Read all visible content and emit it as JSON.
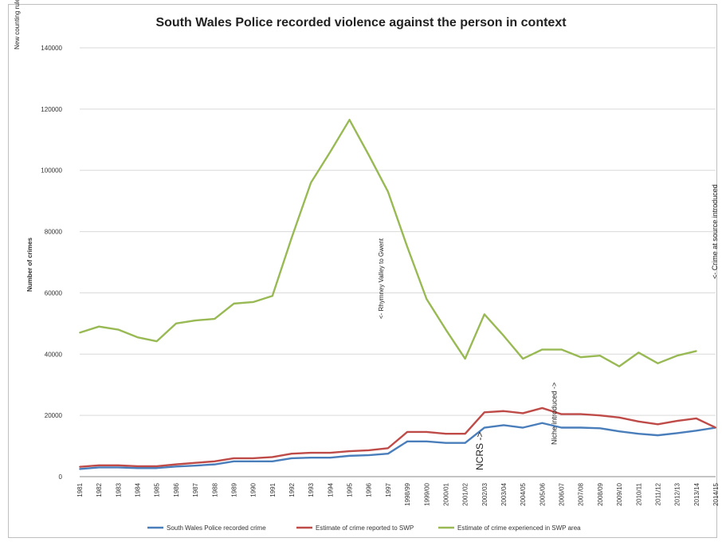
{
  "chart_data": {
    "type": "line",
    "title": "South Wales Police recorded violence against the person in context",
    "ylabel": "Number of crimes",
    "xlabel": "",
    "ylim": [
      0,
      140000
    ],
    "yticks": [
      0,
      20000,
      40000,
      60000,
      80000,
      100000,
      120000,
      140000
    ],
    "grid": true,
    "legend_position": "bottom",
    "categories": [
      "1981",
      "1982",
      "1983",
      "1984",
      "1985",
      "1986",
      "1987",
      "1988",
      "1989",
      "1990",
      "1991",
      "1992",
      "1993",
      "1994",
      "1995",
      "1996",
      "1997",
      "1998/99",
      "1999/00",
      "2000/01",
      "2001/02",
      "2002/03",
      "2003/04",
      "2004/05",
      "2005/06",
      "2006/07",
      "2007/08",
      "2008/09",
      "2009/10",
      "2010/11",
      "2011/12",
      "2012/13",
      "2013/14",
      "2014/15"
    ],
    "series": [
      {
        "name": "South Wales Police recorded crime",
        "color": "#4a7ebb",
        "values": [
          2500,
          3000,
          3000,
          2800,
          2800,
          3300,
          3600,
          4000,
          5000,
          5000,
          5000,
          6000,
          6200,
          6200,
          6800,
          7000,
          7500,
          11500,
          11500,
          11000,
          11000,
          16000,
          16800,
          16000,
          17500,
          16000,
          16000,
          15800,
          14800,
          14000,
          13500,
          14200,
          15000,
          16000
        ]
      },
      {
        "name": "Estimate of crime reported to SWP",
        "color": "#be4b48",
        "values": [
          3200,
          3700,
          3700,
          3400,
          3400,
          4000,
          4500,
          5000,
          6000,
          6000,
          6400,
          7500,
          7800,
          7800,
          8300,
          8600,
          9300,
          14600,
          14600,
          14000,
          14000,
          21000,
          21400,
          20700,
          22400,
          20400,
          20400,
          20000,
          19300,
          18000,
          17100,
          18200,
          19000,
          16000
        ]
      },
      {
        "name": "Estimate of crime experienced in SWP area",
        "color": "#98b954",
        "values": [
          47000,
          49000,
          48000,
          45500,
          44200,
          50000,
          51000,
          51500,
          56500,
          57000,
          59000,
          78000,
          96000,
          106000,
          116500,
          105000,
          93000,
          75000,
          58000,
          48000,
          38500,
          53000,
          46000,
          38500,
          41500,
          41500,
          39000,
          39500,
          36000,
          40500,
          37000,
          39500,
          41000,
          null
        ]
      }
    ],
    "annotations": [
      {
        "text": "New counting rules - >",
        "category": "1981"
      },
      {
        "text": "<- Rhymney Valley to Gwent",
        "category": "1997"
      },
      {
        "text": "NCRS ->",
        "category": "2002/03"
      },
      {
        "text": "Niche introduced ->",
        "category": "2006/07"
      },
      {
        "text": "<- Crime at source introduced",
        "category": "2014/15"
      }
    ]
  }
}
